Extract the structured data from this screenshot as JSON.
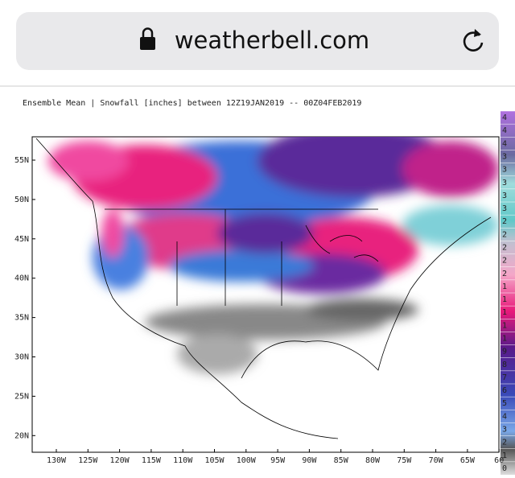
{
  "browser": {
    "url": "weatherbell.com"
  },
  "map": {
    "title": "Ensemble Mean | Snowfall [inches] between 12Z19JAN2019 -- 00Z04FEB2019",
    "lat_labels": [
      "55N",
      "50N",
      "45N",
      "40N",
      "35N",
      "30N",
      "25N",
      "20N"
    ],
    "lon_labels": [
      "130W",
      "125W",
      "120W",
      "115W",
      "110W",
      "105W",
      "100W",
      "95W",
      "90W",
      "85W",
      "80W",
      "75W",
      "70W",
      "65W",
      "60"
    ],
    "colorbar_labels": [
      "4",
      "4",
      "4",
      "3",
      "3",
      "3",
      "3",
      "3",
      "2",
      "2",
      "2",
      "2",
      "2",
      "1",
      "1",
      "1",
      "1",
      "1",
      "9",
      "8",
      "7",
      "6",
      "5",
      "4",
      "3",
      "2",
      "1",
      "0"
    ]
  }
}
